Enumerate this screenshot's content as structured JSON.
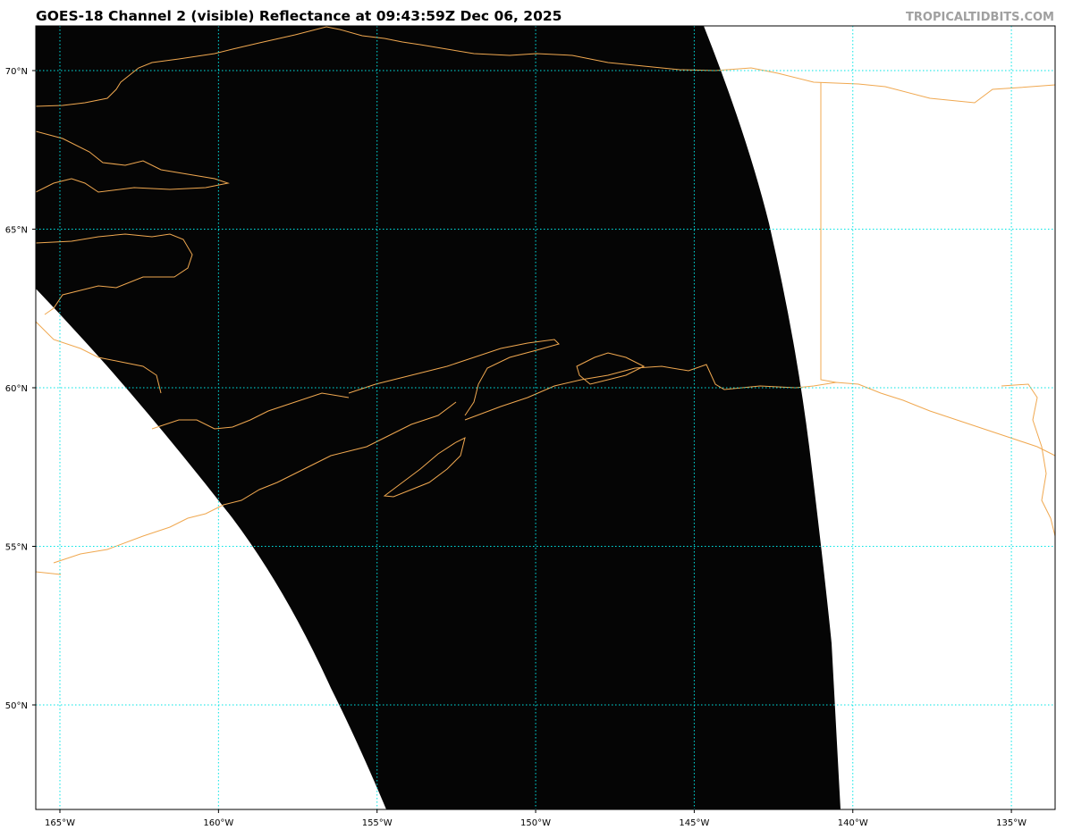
{
  "title": "GOES-18 Channel 2 (visible) Reflectance at 09:43:59Z Dec 06, 2025",
  "credit": "TROPICALTIDBITS.COM",
  "map": {
    "satellite": "GOES-18",
    "channel": "Channel 2 (visible)",
    "colors": {
      "gridlines": "#00e5e5",
      "coastlines": "#f0a850",
      "no_data": "#ffffff",
      "night_imagery": "#000000"
    },
    "longitude_ticks": [
      {
        "value": -165,
        "label": "165°W"
      },
      {
        "value": -160,
        "label": "160°W"
      },
      {
        "value": -155,
        "label": "155°W"
      },
      {
        "value": -150,
        "label": "150°W"
      },
      {
        "value": -145,
        "label": "145°W"
      },
      {
        "value": -140,
        "label": "140°W"
      },
      {
        "value": -135,
        "label": "135°W"
      }
    ],
    "latitude_ticks": [
      {
        "value": 70,
        "label": "70°N"
      },
      {
        "value": 65,
        "label": "65°N"
      },
      {
        "value": 60,
        "label": "60°N"
      },
      {
        "value": 55,
        "label": "55°N"
      },
      {
        "value": 50,
        "label": "50°N"
      }
    ]
  }
}
